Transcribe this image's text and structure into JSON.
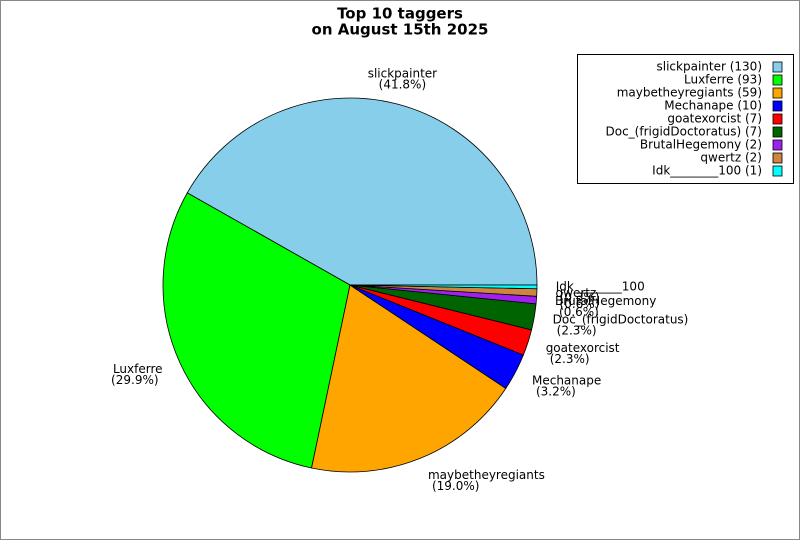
{
  "chart_data": {
    "type": "pie",
    "title": [
      "Top 10 taggers",
      "on August 15th 2025"
    ],
    "categories": [
      "slickpainter",
      "Luxferre",
      "maybetheyregiants",
      "Mechanape",
      "goatexorcist",
      "Doc_(frigidDoctoratus)",
      "BrutalHegemony",
      "qwertz",
      "Idk________100"
    ],
    "values": [
      130,
      93,
      59,
      10,
      7,
      7,
      2,
      2,
      1
    ],
    "percent_labels": [
      "(41.8%)",
      "(29.9%)",
      "(19.0%)",
      "(3.2%)",
      "(2.3%)",
      "(2.3%)",
      "(0.6%)",
      "(0.6%)",
      "(0.3%)"
    ],
    "legend_labels": [
      "slickpainter (130)",
      "Luxferre (93)",
      "maybetheyregiants (59)",
      "Mechanape (10)",
      "goatexorcist (7)",
      "Doc_(frigidDoctoratus) (7)",
      "BrutalHegemony (2)",
      "qwertz (2)",
      "Idk________100 (1)"
    ],
    "colors": [
      "#87ceeb",
      "#00ff00",
      "#ffa500",
      "#0000ff",
      "#ff0000",
      "#006400",
      "#a020f0",
      "#cd853f",
      "#00ffff"
    ],
    "legend": "upper right"
  }
}
